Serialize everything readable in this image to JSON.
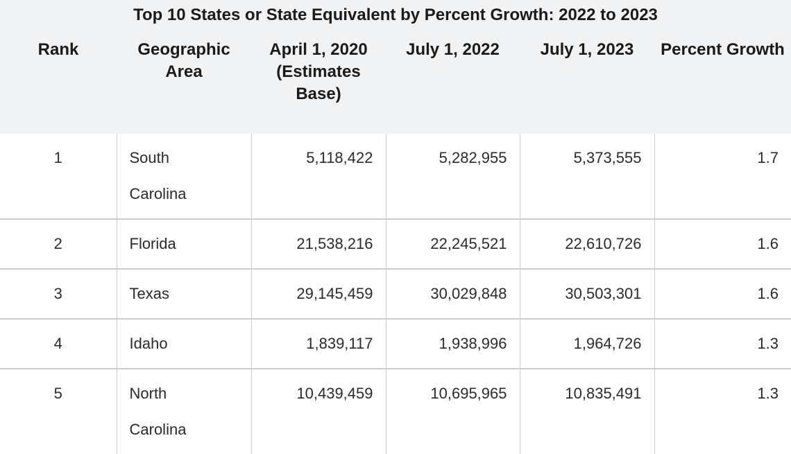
{
  "title": "Top 10 States or State Equivalent by Percent Growth: 2022 to 2023",
  "columns": [
    "Rank",
    "Geographic Area",
    "April 1, 2020 (Estimates Base)",
    "July 1, 2022",
    "July 1, 2023",
    "Percent Growth"
  ],
  "rows": [
    {
      "rank": "1",
      "area": "South Carolina",
      "base2020": "5,118,422",
      "jul2022": "5,282,955",
      "jul2023": "5,373,555",
      "growth": "1.7"
    },
    {
      "rank": "2",
      "area": "Florida",
      "base2020": "21,538,216",
      "jul2022": "22,245,521",
      "jul2023": "22,610,726",
      "growth": "1.6"
    },
    {
      "rank": "3",
      "area": "Texas",
      "base2020": "29,145,459",
      "jul2022": "30,029,848",
      "jul2023": "30,503,301",
      "growth": "1.6"
    },
    {
      "rank": "4",
      "area": "Idaho",
      "base2020": "1,839,117",
      "jul2022": "1,938,996",
      "jul2023": "1,964,726",
      "growth": "1.3"
    },
    {
      "rank": "5",
      "area": "North Carolina",
      "base2020": "10,439,459",
      "jul2022": "10,695,965",
      "jul2023": "10,835,491",
      "growth": "1.3"
    }
  ],
  "colors": {
    "header_bg": "#f1f2f4",
    "grid": "#c9cccf",
    "text": "#222222"
  }
}
